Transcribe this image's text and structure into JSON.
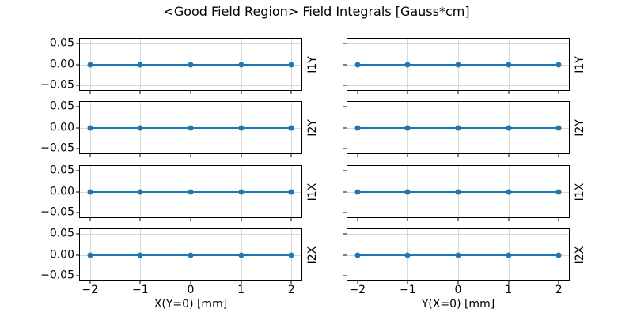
{
  "title": "<Good Field Region> Field Integrals [Gauss*cm]",
  "colors": {
    "line": "#1f77b4",
    "grid": "#d9d9d9",
    "spine": "#000000",
    "text": "#000000",
    "background": "#ffffff"
  },
  "chart_data": {
    "type": "line",
    "title": "<Good Field Region> Field Integrals [Gauss*cm]",
    "grid": true,
    "layout": "4 rows x 2 columns, shared style",
    "xlim": [
      -2.2,
      2.2
    ],
    "ylim": [
      -0.0605,
      0.0605
    ],
    "xticks": [
      -2,
      -1,
      0,
      1,
      2
    ],
    "yticks": [
      0.05,
      0,
      -0.05
    ],
    "xtick_labels": [
      "−2",
      "−1",
      "0",
      "1",
      "2"
    ],
    "ytick_labels": [
      "0.05",
      "0.00",
      "−0.05"
    ],
    "columns": [
      {
        "xlabel": "X(Y=0) [mm]"
      },
      {
        "xlabel": "Y(X=0) [mm]"
      }
    ],
    "rows": [
      {
        "ylabel": "I1Y"
      },
      {
        "ylabel": "I2Y"
      },
      {
        "ylabel": "I1X"
      },
      {
        "ylabel": "I2X"
      }
    ],
    "subplots": [
      {
        "row": 0,
        "col": 0,
        "ylabel": "I1Y",
        "x": [
          -2,
          -1,
          0,
          1,
          2
        ],
        "y": [
          0,
          0,
          0,
          0,
          0
        ]
      },
      {
        "row": 0,
        "col": 1,
        "ylabel": "I1Y",
        "x": [
          -2,
          -1,
          0,
          1,
          2
        ],
        "y": [
          0,
          0,
          0,
          0,
          0
        ]
      },
      {
        "row": 1,
        "col": 0,
        "ylabel": "I2Y",
        "x": [
          -2,
          -1,
          0,
          1,
          2
        ],
        "y": [
          0,
          0,
          0,
          0,
          0
        ]
      },
      {
        "row": 1,
        "col": 1,
        "ylabel": "I2Y",
        "x": [
          -2,
          -1,
          0,
          1,
          2
        ],
        "y": [
          0,
          0,
          0,
          0,
          0
        ]
      },
      {
        "row": 2,
        "col": 0,
        "ylabel": "I1X",
        "x": [
          -2,
          -1,
          0,
          1,
          2
        ],
        "y": [
          0,
          0,
          0,
          0,
          0
        ]
      },
      {
        "row": 2,
        "col": 1,
        "ylabel": "I1X",
        "x": [
          -2,
          -1,
          0,
          1,
          2
        ],
        "y": [
          0,
          0,
          0,
          0,
          0
        ]
      },
      {
        "row": 3,
        "col": 0,
        "ylabel": "I2X",
        "x": [
          -2,
          -1,
          0,
          1,
          2
        ],
        "y": [
          0,
          0,
          0,
          0,
          0
        ]
      },
      {
        "row": 3,
        "col": 1,
        "ylabel": "I2X",
        "x": [
          -2,
          -1,
          0,
          1,
          2
        ],
        "y": [
          0,
          0,
          0,
          0,
          0
        ]
      }
    ]
  }
}
